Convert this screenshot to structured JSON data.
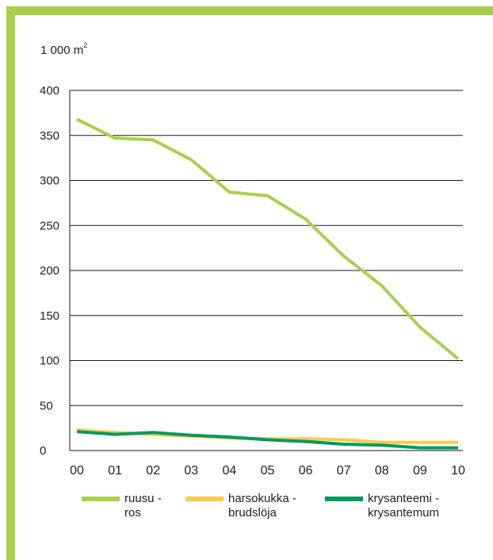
{
  "colors": {
    "frame": "#a9d04d",
    "grid": "#1a1a1a",
    "axis": "#1a1a1a"
  },
  "unit": {
    "base": "1 000 m",
    "sup": "2"
  },
  "chart_data": {
    "type": "line",
    "title": "",
    "xlabel": "",
    "ylabel": "1 000 m2",
    "categories": [
      "00",
      "01",
      "02",
      "03",
      "04",
      "05",
      "06",
      "07",
      "08",
      "09",
      "10"
    ],
    "ylim": [
      0,
      400
    ],
    "yticks": [
      0,
      50,
      100,
      150,
      200,
      250,
      300,
      350,
      400
    ],
    "grid": true,
    "legend_position": "bottom",
    "series": [
      {
        "name_line1": "ruusu -",
        "name_line2": "ros",
        "color": "#a9d04d",
        "values": [
          368,
          347,
          345,
          323,
          287,
          283,
          257,
          216,
          183,
          137,
          102
        ]
      },
      {
        "name_line1": "harsokukka -",
        "name_line2": "brudslöja",
        "color": "#fbc94c",
        "values": [
          23,
          20,
          18,
          16,
          14,
          13,
          13,
          12,
          9,
          9,
          9
        ]
      },
      {
        "name_line1": "krysanteemi -",
        "name_line2": "krysantemum",
        "color": "#009a5c",
        "values": [
          21,
          18,
          20,
          17,
          15,
          12,
          10,
          7,
          6,
          3,
          3
        ]
      }
    ]
  }
}
